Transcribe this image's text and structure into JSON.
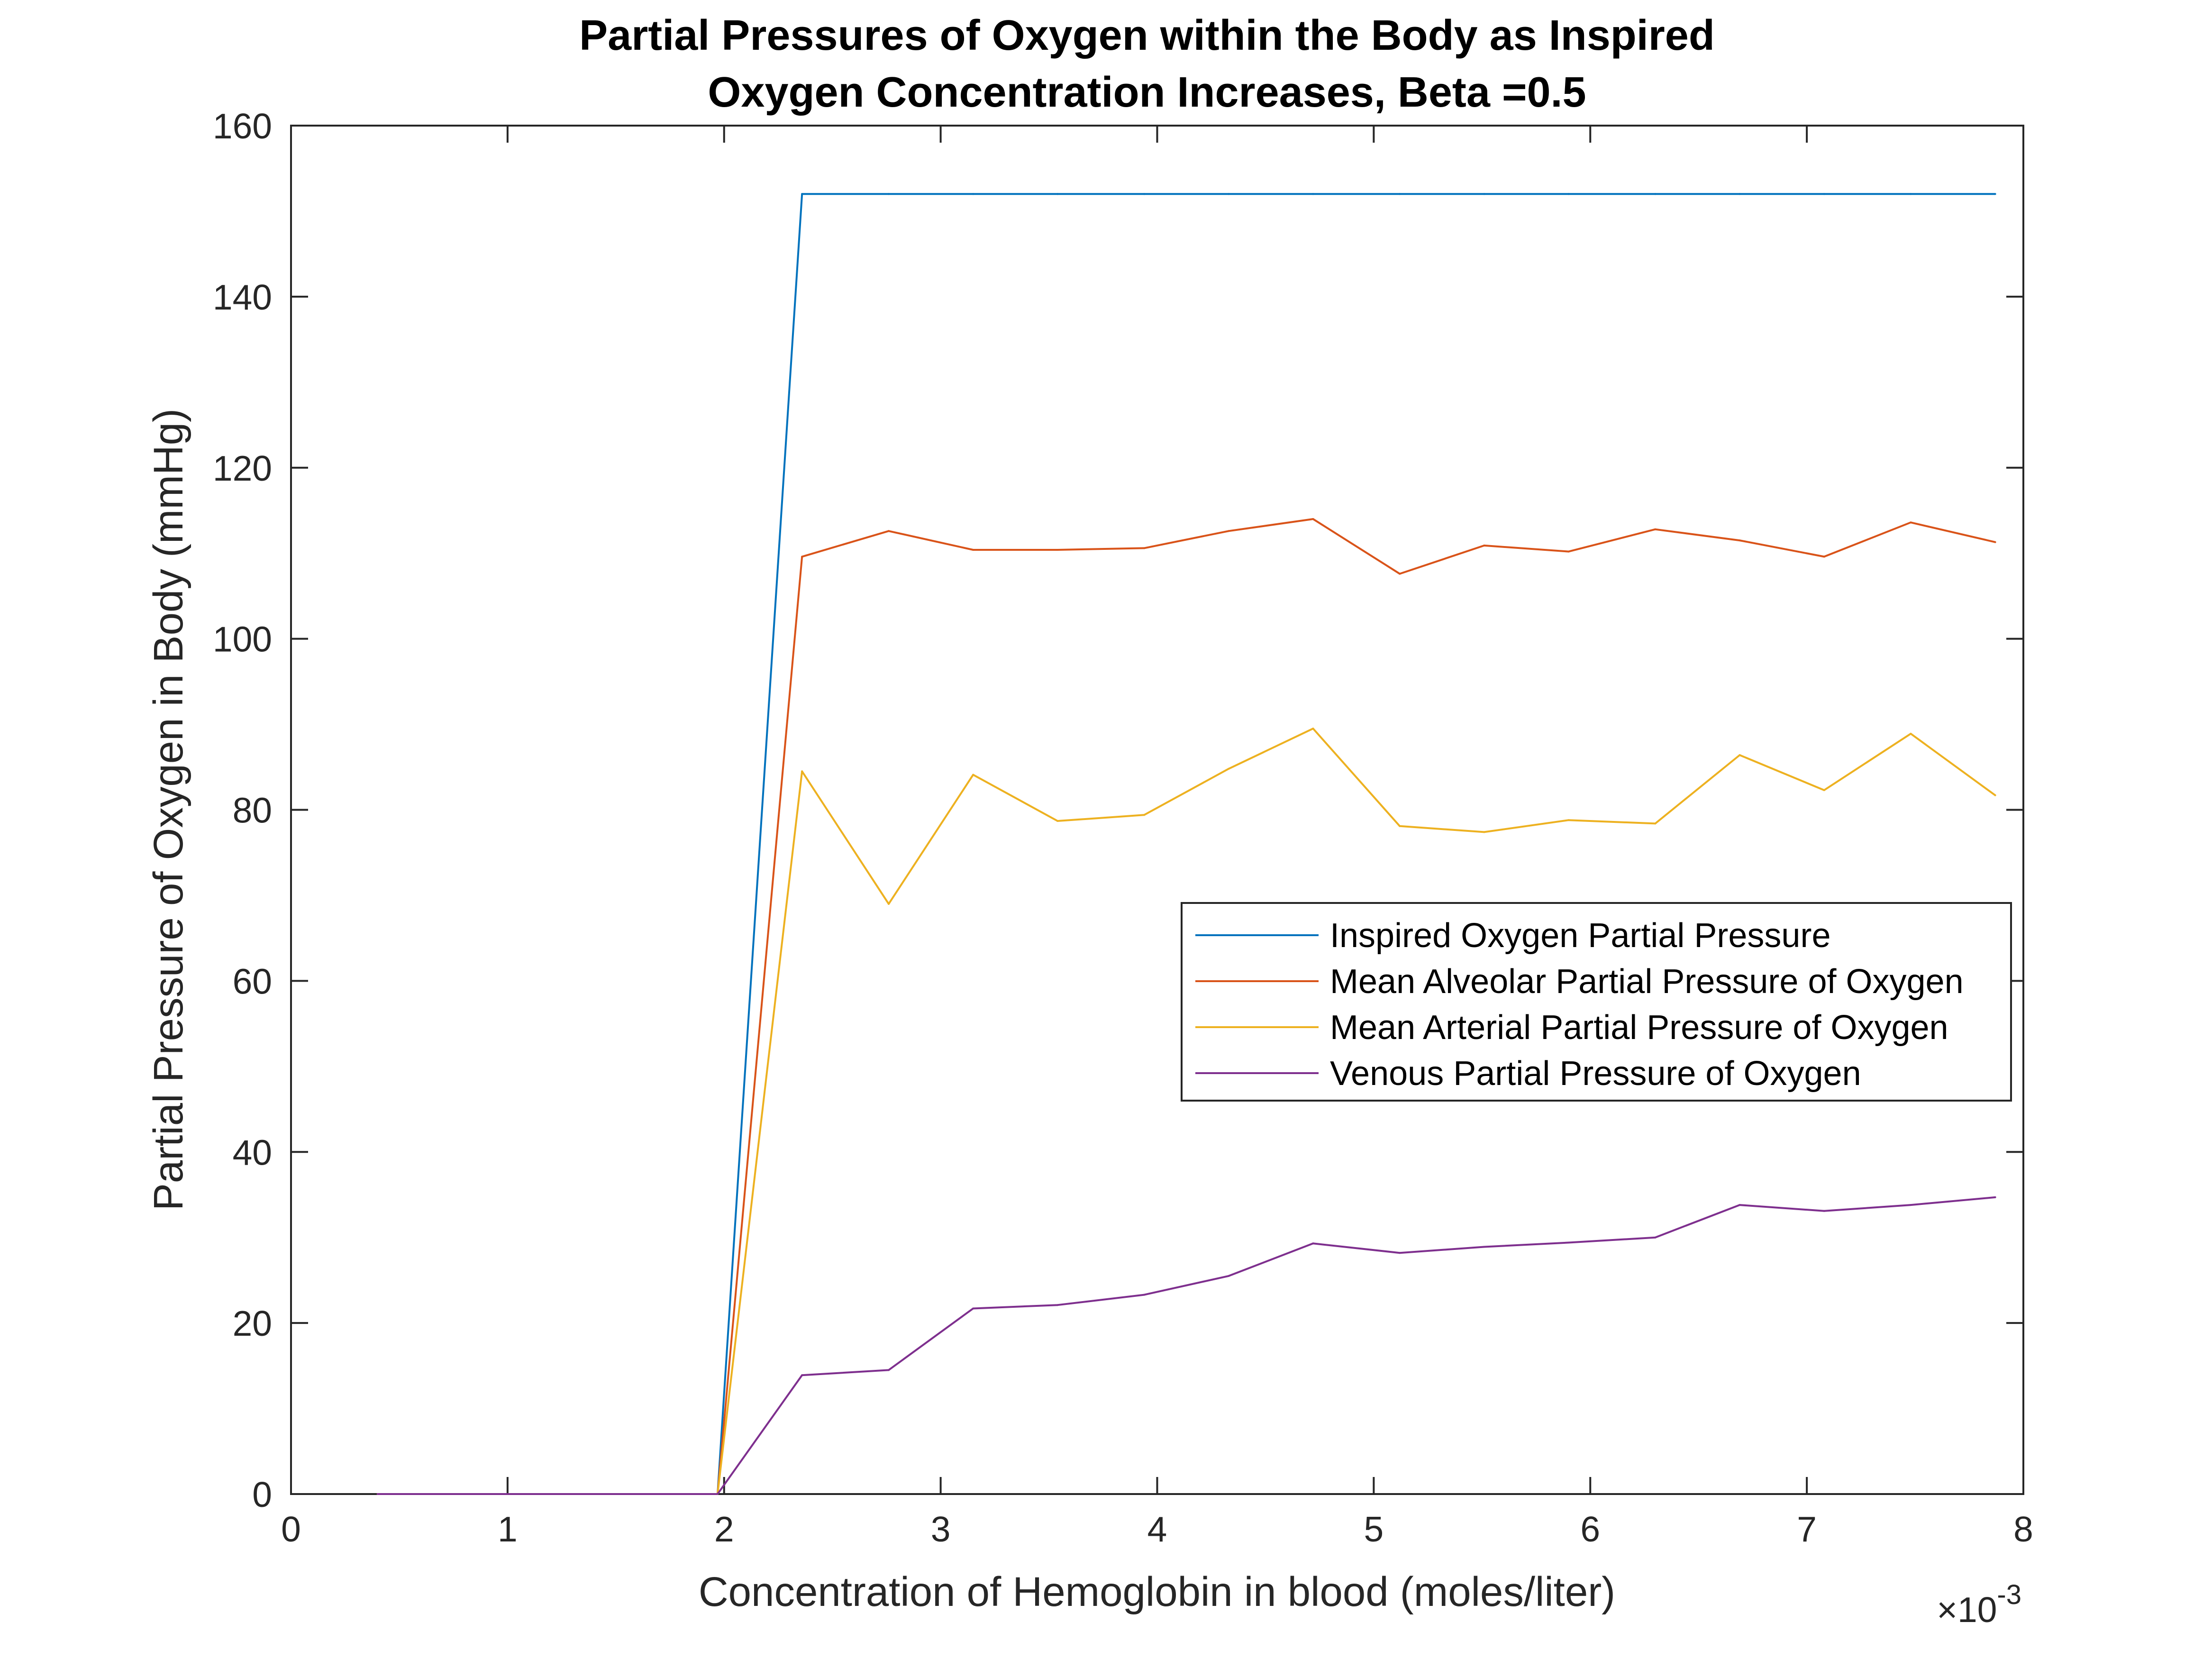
{
  "chart_data": {
    "type": "line",
    "title_lines": [
      "Partial Pressures of Oxygen within the Body as Inspired",
      "Oxygen Concentration Increases, Beta =0.5"
    ],
    "xlabel": "Concentration of Hemoglobin in blood (moles/liter)",
    "ylabel": "Partial Pressure of Oxygen in  Body (mmHg)",
    "x_exponent_prefix": "×10",
    "x_exponent_power": "-3",
    "xlim": [
      0,
      8
    ],
    "ylim": [
      0,
      160
    ],
    "xticks": [
      0,
      1,
      2,
      3,
      4,
      5,
      6,
      7,
      8
    ],
    "xtick_labels": [
      "0",
      "1",
      "2",
      "3",
      "4",
      "5",
      "6",
      "7",
      "8"
    ],
    "yticks": [
      0,
      20,
      40,
      60,
      80,
      100,
      120,
      140,
      160
    ],
    "ytick_labels": [
      "0",
      "20",
      "40",
      "60",
      "80",
      "100",
      "120",
      "140",
      "160"
    ],
    "x_scale_note": "x values in units of 10^-3 moles/liter",
    "grid": false,
    "legend_position": "right",
    "x": [
      0.4,
      0.79,
      1.18,
      1.57,
      1.97,
      2.36,
      2.76,
      3.15,
      3.54,
      3.94,
      4.33,
      4.72,
      5.12,
      5.51,
      5.9,
      6.3,
      6.69,
      7.08,
      7.48,
      7.87
    ],
    "series": [
      {
        "name": "Inspired Oxygen Partial Pressure",
        "color": "#0072BD",
        "values": [
          0,
          0,
          0,
          0,
          0,
          152,
          152,
          152,
          152,
          152,
          152,
          152,
          152,
          152,
          152,
          152,
          152,
          152,
          152,
          152
        ]
      },
      {
        "name": "Mean Alveolar Partial Pressure of Oxygen",
        "color": "#D95319",
        "values": [
          0,
          0,
          0,
          0,
          0,
          109.6,
          112.6,
          110.4,
          110.4,
          110.6,
          112.6,
          114,
          107.6,
          110.9,
          110.2,
          112.8,
          111.5,
          109.6,
          113.6,
          111.3
        ]
      },
      {
        "name": "Mean Arterial Partial Pressure of Oxygen",
        "color": "#EDB120",
        "values": [
          0,
          0,
          0,
          0,
          0,
          84.5,
          69,
          84.1,
          78.7,
          79.4,
          84.8,
          89.5,
          78.1,
          77.4,
          78.8,
          78.4,
          86.4,
          82.3,
          88.9,
          81.7
        ]
      },
      {
        "name": "Venous Partial Pressure of Oxygen",
        "color": "#7E2F8E",
        "values": [
          0,
          0,
          0,
          0,
          0,
          13.9,
          14.5,
          21.7,
          22.1,
          23.3,
          25.5,
          29.3,
          28.2,
          28.9,
          29.4,
          30,
          33.8,
          33.1,
          33.8,
          34.7
        ]
      }
    ]
  }
}
